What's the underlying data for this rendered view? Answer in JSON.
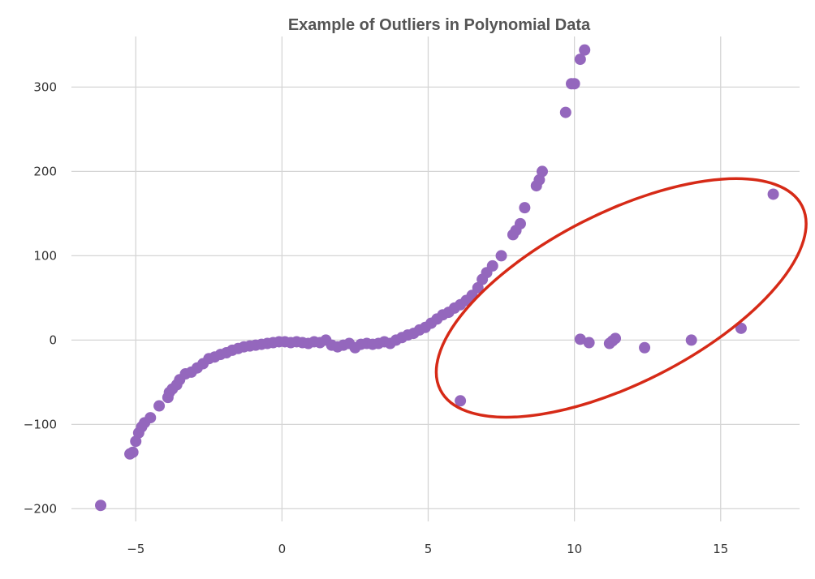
{
  "chart_data": {
    "type": "scatter",
    "title": "Example of Outliers in Polynomial Data",
    "xlabel": "",
    "ylabel": "",
    "xlim": [
      -7.2,
      17.7
    ],
    "ylim": [
      -215,
      360
    ],
    "x_ticks": [
      -5,
      0,
      5,
      10,
      15
    ],
    "y_ticks": [
      -200,
      -100,
      0,
      100,
      200,
      300
    ],
    "x_tick_labels": [
      "−5",
      "0",
      "5",
      "10",
      "15"
    ],
    "y_tick_labels": [
      "−200",
      "−100",
      "0",
      "100",
      "200",
      "300"
    ],
    "grid": true,
    "legend": "none",
    "point_color": "#9467bd",
    "highlight_color": "#d62a17",
    "highlight_ellipse": {
      "center": [
        11.6,
        50
      ],
      "description": "red ellipse circling outlier points"
    },
    "series": [
      {
        "points": [
          [
            -6.2,
            -196
          ],
          [
            -5.2,
            -135
          ],
          [
            -5.1,
            -133
          ],
          [
            -5.0,
            -120
          ],
          [
            -4.9,
            -110
          ],
          [
            -4.8,
            -103
          ],
          [
            -4.7,
            -98
          ],
          [
            -4.5,
            -92
          ],
          [
            -4.2,
            -78
          ],
          [
            -3.9,
            -68
          ],
          [
            -3.85,
            -62
          ],
          [
            -3.75,
            -58
          ],
          [
            -3.6,
            -53
          ],
          [
            -3.5,
            -47
          ],
          [
            -3.3,
            -40
          ],
          [
            -3.1,
            -38
          ],
          [
            -2.9,
            -33
          ],
          [
            -2.7,
            -28
          ],
          [
            -2.5,
            -22
          ],
          [
            -2.3,
            -20
          ],
          [
            -2.1,
            -17
          ],
          [
            -1.9,
            -15
          ],
          [
            -1.7,
            -12
          ],
          [
            -1.5,
            -10
          ],
          [
            -1.3,
            -8
          ],
          [
            -1.1,
            -7
          ],
          [
            -0.9,
            -6
          ],
          [
            -0.7,
            -5
          ],
          [
            -0.5,
            -4
          ],
          [
            -0.3,
            -3
          ],
          [
            -0.1,
            -2
          ],
          [
            0.1,
            -2
          ],
          [
            0.3,
            -3
          ],
          [
            0.5,
            -2
          ],
          [
            0.7,
            -3
          ],
          [
            0.9,
            -4
          ],
          [
            1.1,
            -2
          ],
          [
            1.3,
            -3
          ],
          [
            1.5,
            0
          ],
          [
            1.7,
            -6
          ],
          [
            1.9,
            -8
          ],
          [
            2.1,
            -6
          ],
          [
            2.3,
            -4
          ],
          [
            2.5,
            -9
          ],
          [
            2.7,
            -5
          ],
          [
            2.9,
            -4
          ],
          [
            3.1,
            -5
          ],
          [
            3.3,
            -4
          ],
          [
            3.5,
            -2
          ],
          [
            3.7,
            -4
          ],
          [
            3.9,
            0
          ],
          [
            4.1,
            3
          ],
          [
            4.3,
            6
          ],
          [
            4.5,
            8
          ],
          [
            4.7,
            12
          ],
          [
            4.9,
            15
          ],
          [
            5.1,
            20
          ],
          [
            5.3,
            25
          ],
          [
            5.5,
            30
          ],
          [
            5.7,
            33
          ],
          [
            5.9,
            38
          ],
          [
            6.1,
            42
          ],
          [
            6.3,
            47
          ],
          [
            6.5,
            53
          ],
          [
            6.7,
            62
          ],
          [
            6.85,
            72
          ],
          [
            7.0,
            80
          ],
          [
            7.2,
            88
          ],
          [
            7.5,
            100
          ],
          [
            7.9,
            125
          ],
          [
            8.0,
            130
          ],
          [
            8.15,
            138
          ],
          [
            8.3,
            157
          ],
          [
            8.7,
            183
          ],
          [
            8.8,
            190
          ],
          [
            8.9,
            200
          ],
          [
            9.7,
            270
          ],
          [
            9.9,
            304
          ],
          [
            10.0,
            304
          ],
          [
            10.2,
            333
          ],
          [
            10.35,
            344
          ]
        ]
      },
      {
        "points": [
          [
            6.1,
            -72
          ],
          [
            10.2,
            1
          ],
          [
            10.5,
            -3
          ],
          [
            11.2,
            -4
          ],
          [
            11.3,
            -1
          ],
          [
            11.4,
            2
          ],
          [
            12.4,
            -9
          ],
          [
            14.0,
            0
          ],
          [
            15.7,
            14
          ],
          [
            16.8,
            173
          ]
        ]
      }
    ]
  }
}
